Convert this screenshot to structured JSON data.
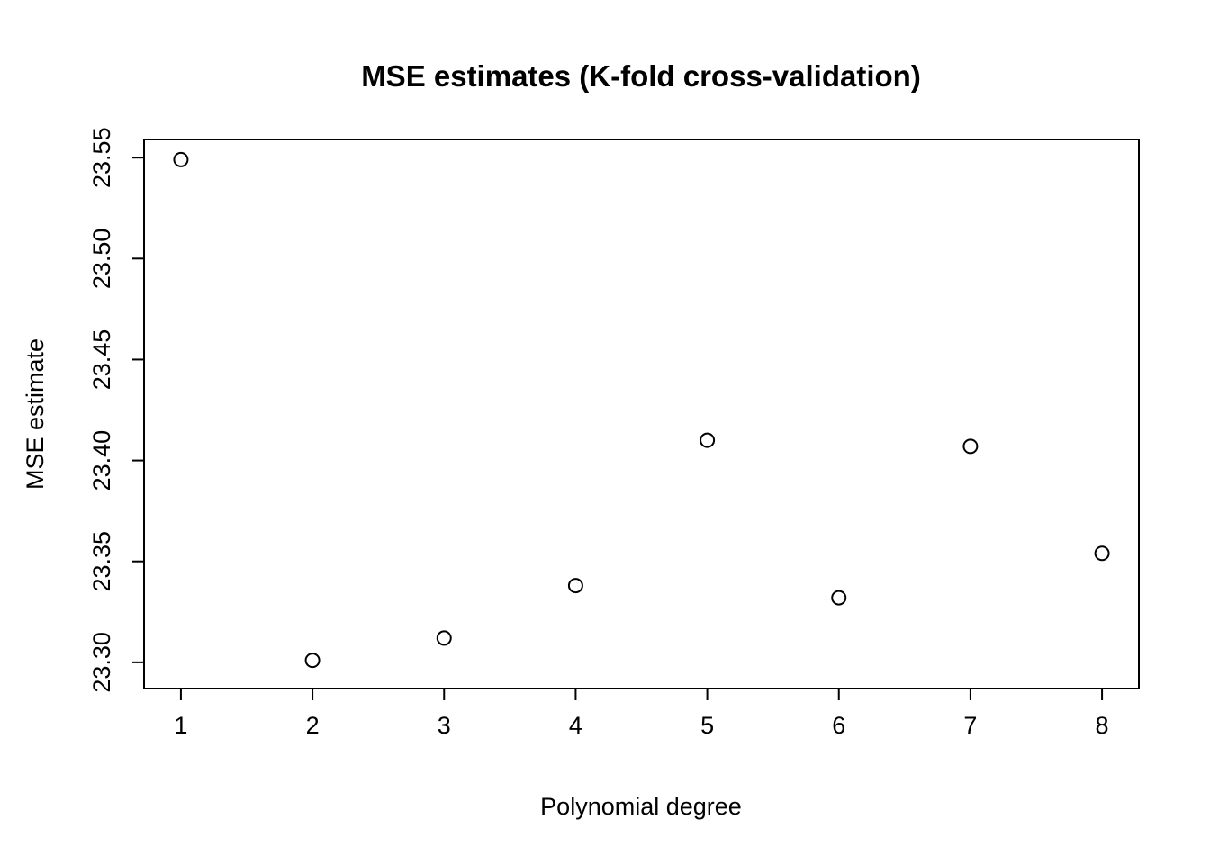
{
  "title": "MSE estimates (K-fold cross-validation)",
  "chart_data": {
    "type": "scatter",
    "title": "MSE estimates (K-fold cross-validation)",
    "xlabel": "Polynomial degree",
    "ylabel": "MSE estimate",
    "x": [
      1,
      2,
      3,
      4,
      5,
      6,
      7,
      8
    ],
    "y": [
      23.549,
      23.301,
      23.312,
      23.338,
      23.41,
      23.332,
      23.407,
      23.354
    ],
    "xticks": [
      "1",
      "2",
      "3",
      "4",
      "5",
      "6",
      "7",
      "8"
    ],
    "xtick_values": [
      1,
      2,
      3,
      4,
      5,
      6,
      7,
      8
    ],
    "yticks": [
      "23.30",
      "23.35",
      "23.40",
      "23.45",
      "23.50",
      "23.55"
    ],
    "ytick_values": [
      23.3,
      23.35,
      23.4,
      23.45,
      23.5,
      23.55
    ],
    "xlim": [
      0.72,
      8.28
    ],
    "ylim": [
      23.287,
      23.559
    ],
    "grid": false,
    "legend": null,
    "marker": "open-circle",
    "marker_color": "#000000",
    "background_color": "#ffffff"
  }
}
